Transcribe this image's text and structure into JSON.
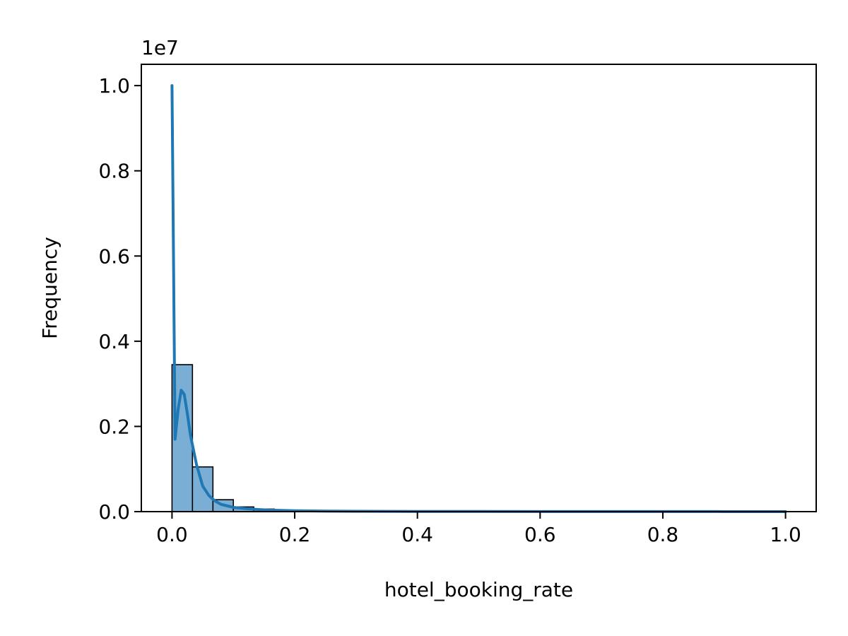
{
  "chart_data": {
    "type": "bar",
    "subtype": "histogram with density curve",
    "title": "",
    "xlabel": "hotel_booking_rate",
    "ylabel": "Frequency",
    "y_offset_label": "1e7",
    "xlim": [
      -0.05,
      1.05
    ],
    "ylim": [
      0,
      10500000
    ],
    "grid": false,
    "legend": "none",
    "x_ticks": [
      {
        "value": 0.0,
        "label": "0.0"
      },
      {
        "value": 0.2,
        "label": "0.2"
      },
      {
        "value": 0.4,
        "label": "0.4"
      },
      {
        "value": 0.6,
        "label": "0.6"
      },
      {
        "value": 0.8,
        "label": "0.8"
      },
      {
        "value": 1.0,
        "label": "1.0"
      }
    ],
    "y_ticks": [
      {
        "value": 0,
        "label": "0.0"
      },
      {
        "value": 2000000,
        "label": "0.2"
      },
      {
        "value": 4000000,
        "label": "0.4"
      },
      {
        "value": 6000000,
        "label": "0.6"
      },
      {
        "value": 8000000,
        "label": "0.8"
      },
      {
        "value": 10000000,
        "label": "1.0"
      }
    ],
    "bins": {
      "edges": [
        0.0,
        0.0333,
        0.0667,
        0.1,
        0.1333,
        0.1667,
        0.2,
        0.2333,
        0.2667,
        0.3,
        0.3333,
        0.3667,
        0.4,
        0.4333,
        0.4667,
        0.5,
        0.5333,
        0.5667,
        0.6,
        0.6333,
        0.6667,
        0.7,
        0.7333,
        0.7667,
        0.8,
        0.8333,
        0.8667,
        0.9,
        0.9333,
        0.9667,
        1.0
      ],
      "counts": [
        3450000,
        1050000,
        280000,
        110000,
        60000,
        35000,
        20000,
        12000,
        8000,
        6000,
        5000,
        4000,
        3000,
        2500,
        2000,
        2000,
        1500,
        1500,
        1200,
        1000,
        1000,
        800,
        800,
        700,
        600,
        600,
        500,
        500,
        400,
        400
      ]
    },
    "kde": {
      "x": [
        0.0,
        0.005,
        0.01,
        0.015,
        0.02,
        0.025,
        0.03,
        0.04,
        0.05,
        0.06,
        0.07,
        0.08,
        0.1,
        0.12,
        0.14,
        0.16,
        0.2,
        0.25,
        0.3,
        0.4,
        0.5,
        0.6,
        0.7,
        0.8,
        0.9,
        1.0
      ],
      "y": [
        10000000,
        1700000,
        2400000,
        2850000,
        2750000,
        2300000,
        1800000,
        1100000,
        600000,
        380000,
        250000,
        170000,
        100000,
        70000,
        50000,
        35000,
        20000,
        12000,
        9000,
        5000,
        3500,
        2500,
        2000,
        1500,
        1000,
        800
      ]
    },
    "colors": {
      "bar_fill": "#7aaed4",
      "bar_edge": "#000000",
      "kde_line": "#1f77b4",
      "axes": "#000000",
      "background": "#ffffff"
    }
  }
}
